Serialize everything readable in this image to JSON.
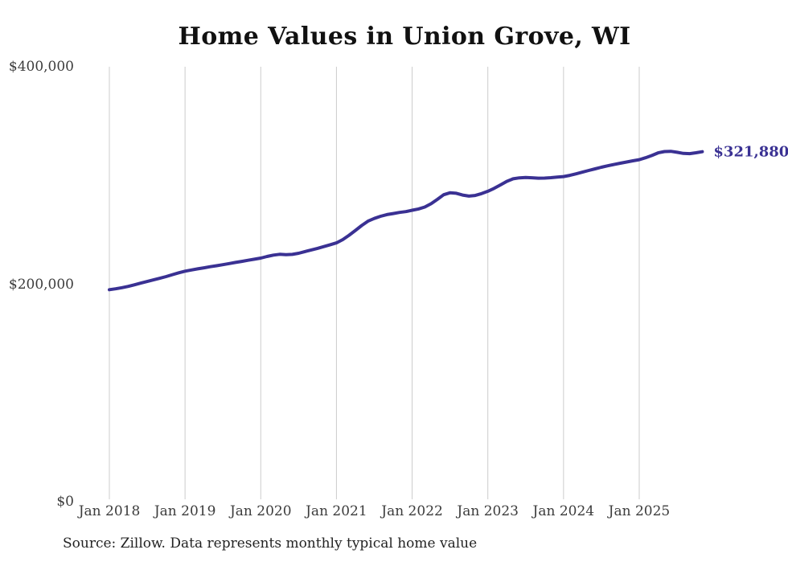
{
  "page": {
    "source_note": "Source: Zillow. Data represents monthly typical home value"
  },
  "chart_data": {
    "type": "line",
    "title": "Home Values in Union Grove, WI",
    "xlabel": "",
    "ylabel": "",
    "ylim": [
      0,
      400000
    ],
    "grid": "vertical-only",
    "legend": "none",
    "line_color": "#3a3193",
    "grid_color": "#cccccc",
    "latest_value": 321880,
    "latest_value_label": "$321,880",
    "yticks": [
      {
        "value": 400000,
        "label": "$400,000"
      },
      {
        "value": 200000,
        "label": "$200,000"
      },
      {
        "value": 0,
        "label": "$0"
      }
    ],
    "xticks": [
      {
        "month_index": 0,
        "label": "Jan 2018"
      },
      {
        "month_index": 12,
        "label": "Jan 2019"
      },
      {
        "month_index": 24,
        "label": "Jan 2020"
      },
      {
        "month_index": 36,
        "label": "Jan 2021"
      },
      {
        "month_index": 48,
        "label": "Jan 2022"
      },
      {
        "month_index": 60,
        "label": "Jan 2023"
      },
      {
        "month_index": 72,
        "label": "Jan 2024"
      },
      {
        "month_index": 84,
        "label": "Jan 2025"
      }
    ],
    "series": [
      {
        "name": "Typical home value",
        "unit": "USD",
        "frequency": "monthly",
        "start_month": "2018-01",
        "end_month": "2025-11",
        "values": [
          195000,
          195800,
          196800,
          198000,
          199500,
          201000,
          202500,
          204000,
          205500,
          207000,
          208800,
          210500,
          212000,
          213100,
          214100,
          215100,
          216100,
          217000,
          218000,
          219000,
          220000,
          221000,
          222000,
          223000,
          224000,
          225500,
          226800,
          227500,
          227100,
          227400,
          228500,
          230000,
          231500,
          233000,
          234600,
          236300,
          238000,
          241000,
          245000,
          249500,
          254000,
          258000,
          260500,
          262500,
          264000,
          265000,
          266000,
          266800,
          268000,
          269200,
          271000,
          274000,
          278000,
          282300,
          284100,
          283600,
          282000,
          281000,
          281600,
          283300,
          285500,
          288100,
          291300,
          294600,
          296900,
          297800,
          298100,
          297900,
          297500,
          297600,
          298000,
          298500,
          299000,
          300100,
          301500,
          303100,
          304600,
          306100,
          307600,
          308900,
          310100,
          311300,
          312400,
          313500,
          314500,
          316300,
          318400,
          320800,
          322000,
          322200,
          321300,
          320300,
          320100,
          320900,
          321880
        ]
      }
    ]
  }
}
